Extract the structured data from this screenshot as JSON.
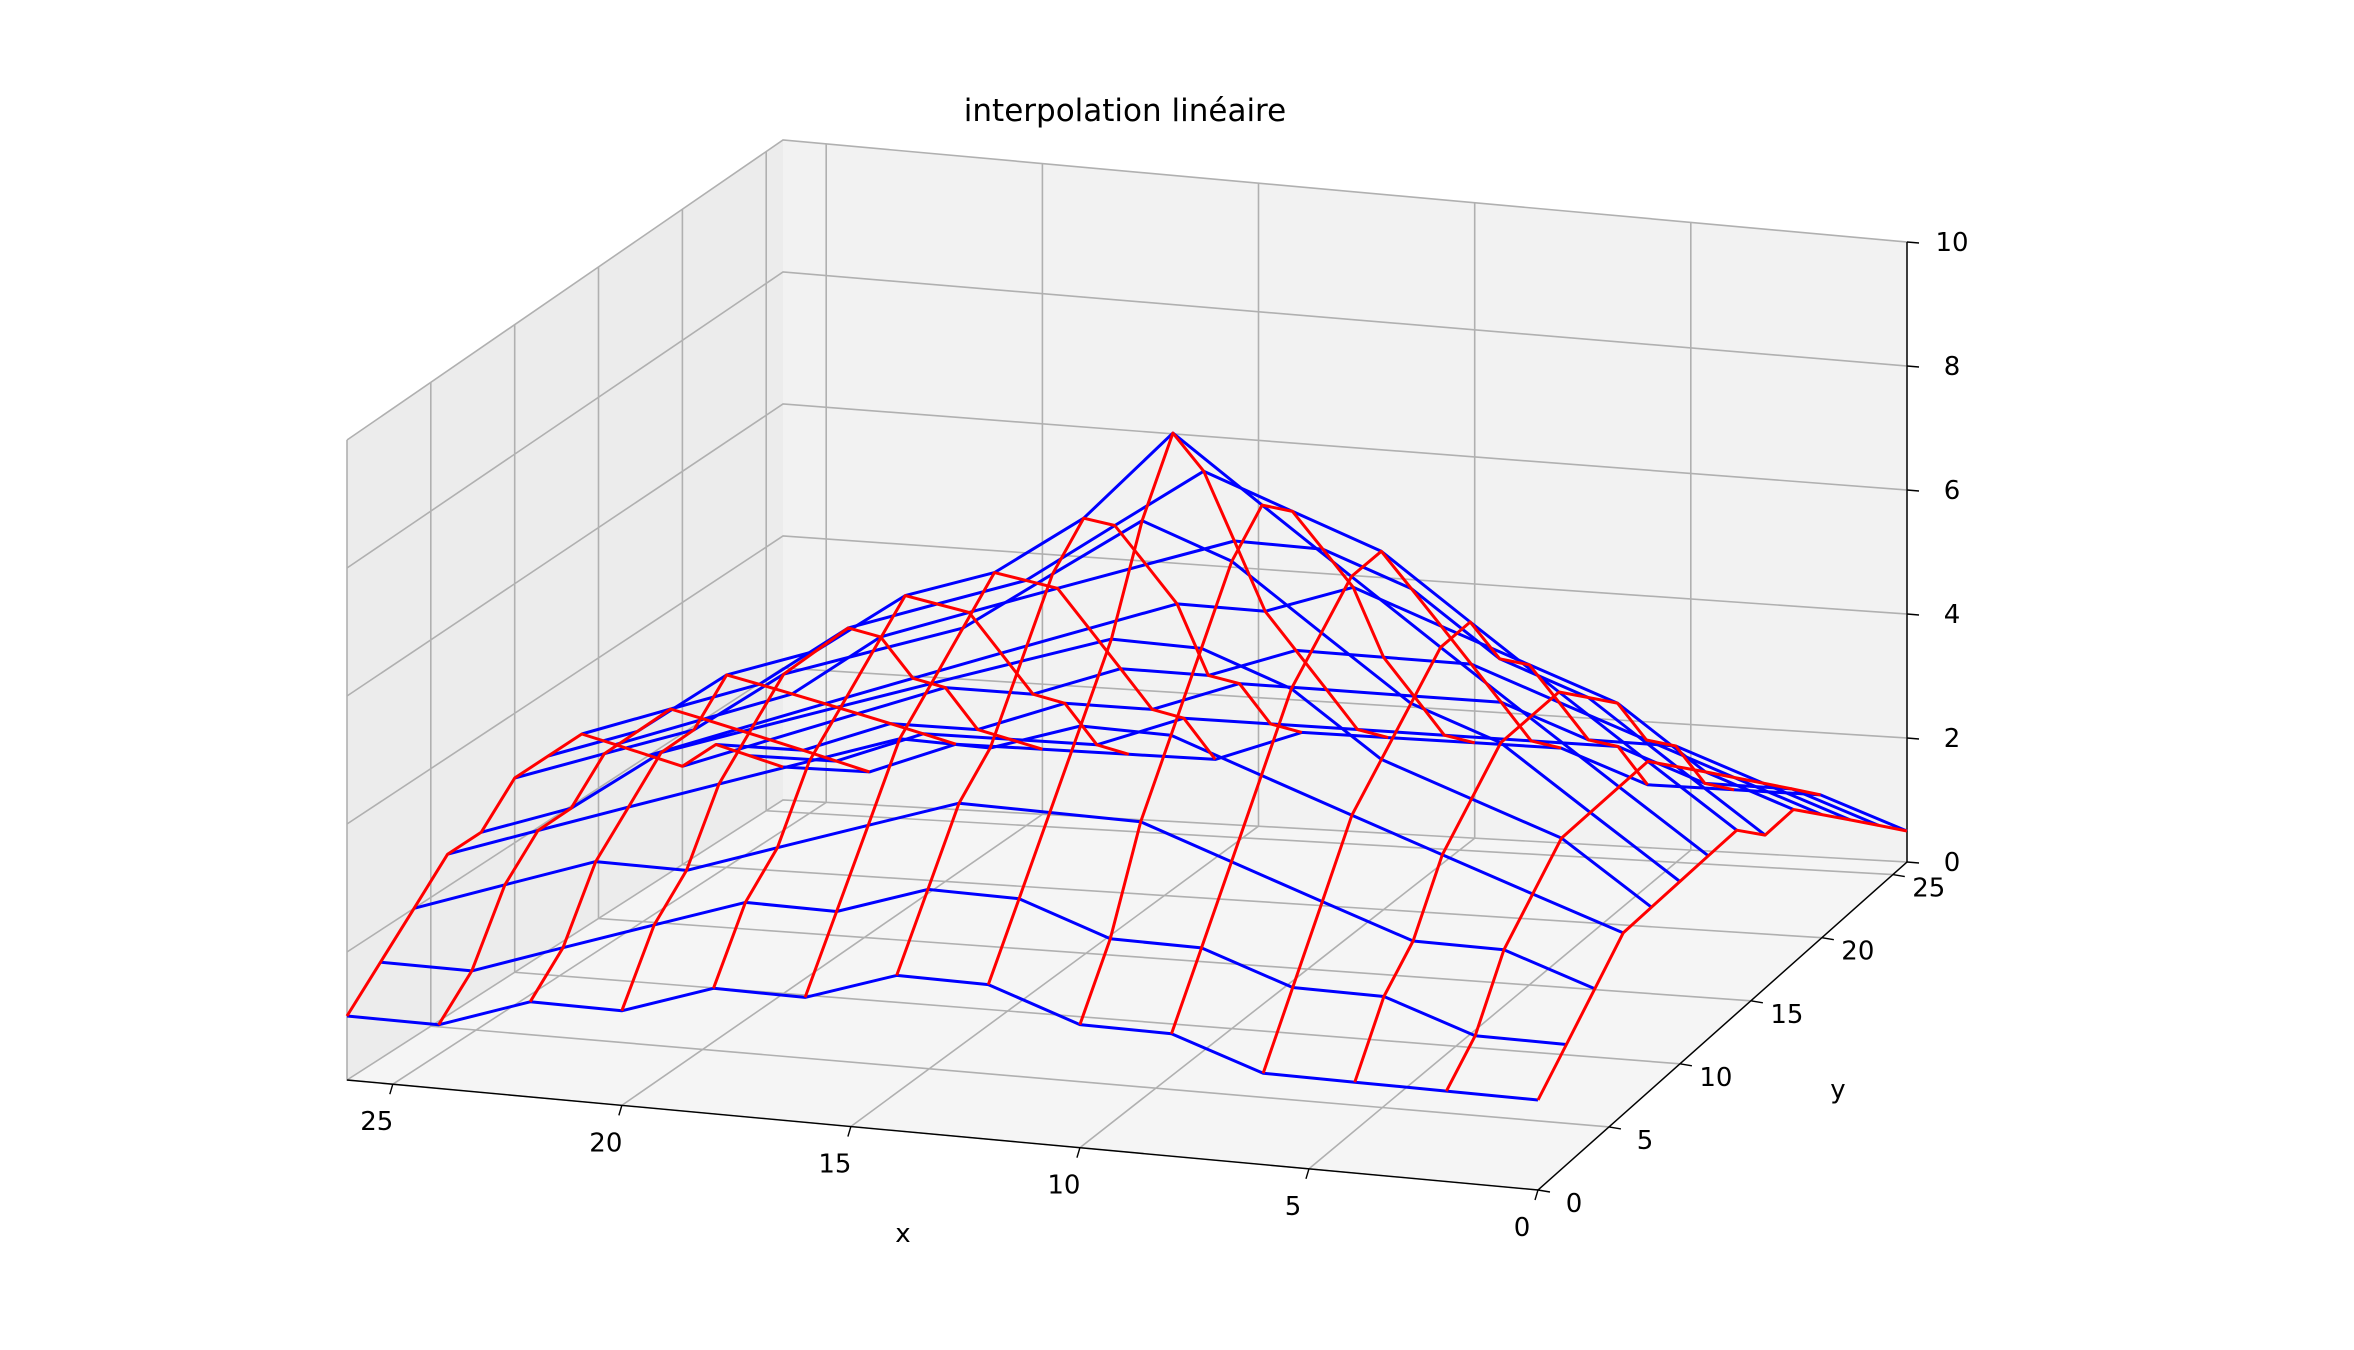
{
  "chart_data": {
    "type": "surface-wireframe",
    "title": "interpolation linéaire",
    "xlabel": "x",
    "ylabel": "y",
    "zlabel": "",
    "x_ticks": [
      "25",
      "20",
      "15",
      "10",
      "5",
      "0"
    ],
    "y_ticks": [
      "0",
      "5",
      "10",
      "15",
      "20",
      "25"
    ],
    "z_ticks": [
      "0",
      "2",
      "4",
      "6",
      "8",
      "10"
    ],
    "xlim": [
      0,
      26
    ],
    "ylim": [
      0,
      26
    ],
    "zlim": [
      0,
      10
    ],
    "grid": true,
    "step": 2,
    "colors": {
      "x_lines": "#0000ff",
      "y_lines": "#ff0000",
      "pane_back": "#f2f2f2",
      "pane_side": "#ececec",
      "pane_floor": "#f5f5f5",
      "grid": "#b0b0b0"
    },
    "series": [
      {
        "kind": "surface",
        "x": [
          0,
          2,
          4,
          6,
          8,
          10,
          12,
          14,
          16,
          18,
          20,
          22,
          24,
          26
        ],
        "y": [
          0,
          2,
          4,
          6,
          8,
          10,
          12,
          14,
          16,
          18,
          20,
          22,
          24,
          26
        ],
        "z": [
          [
            1.5,
            1.5,
            1.5,
            1.5,
            2.0,
            2.0,
            2.5,
            2.5,
            2.0,
            2.0,
            1.5,
            1.5,
            1.0,
            1.0
          ],
          [
            2.0,
            2.0,
            2.5,
            2.5,
            3.0,
            3.0,
            3.5,
            3.5,
            3.0,
            3.0,
            2.5,
            2.0,
            1.5,
            1.5
          ],
          [
            2.5,
            3.0,
            3.0,
            3.5,
            4.0,
            4.5,
            4.5,
            4.5,
            4.0,
            3.5,
            3.0,
            3.0,
            2.5,
            2.0
          ],
          [
            3.0,
            3.5,
            4.0,
            4.5,
            5.0,
            5.5,
            5.5,
            5.0,
            5.0,
            4.5,
            4.0,
            3.5,
            3.0,
            2.5
          ],
          [
            3.0,
            4.0,
            4.5,
            5.0,
            6.0,
            6.5,
            6.5,
            6.0,
            5.5,
            5.0,
            4.5,
            4.0,
            3.0,
            2.5
          ],
          [
            3.0,
            4.0,
            5.0,
            5.5,
            6.5,
            7.5,
            8.0,
            7.0,
            6.0,
            5.5,
            5.0,
            4.0,
            3.5,
            3.0
          ],
          [
            3.0,
            4.0,
            5.0,
            6.0,
            7.0,
            8.0,
            9.0,
            7.5,
            6.5,
            6.0,
            5.0,
            4.5,
            3.5,
            3.0
          ],
          [
            3.0,
            4.0,
            5.0,
            6.0,
            7.0,
            7.5,
            8.0,
            7.0,
            6.0,
            5.5,
            5.0,
            4.0,
            3.5,
            3.0
          ],
          [
            2.5,
            3.5,
            4.5,
            5.0,
            6.0,
            6.5,
            6.5,
            6.0,
            5.5,
            5.0,
            4.5,
            3.5,
            3.0,
            2.5
          ],
          [
            2.5,
            3.0,
            4.0,
            4.5,
            5.0,
            5.5,
            5.0,
            5.0,
            4.5,
            4.0,
            3.5,
            3.0,
            2.5,
            2.0
          ],
          [
            2.0,
            2.5,
            3.0,
            3.5,
            4.0,
            4.0,
            4.0,
            3.5,
            3.5,
            3.0,
            3.0,
            2.5,
            2.0,
            1.5
          ],
          [
            1.5,
            2.0,
            2.5,
            2.5,
            3.0,
            3.0,
            3.0,
            3.0,
            2.5,
            2.5,
            2.0,
            2.0,
            1.5,
            1.5
          ],
          [
            1.0,
            1.5,
            1.5,
            2.0,
            2.0,
            2.0,
            2.0,
            2.0,
            2.0,
            1.5,
            1.5,
            1.5,
            1.0,
            1.0
          ],
          [
            0.5,
            1.0,
            1.0,
            1.0,
            1.5,
            1.5,
            1.5,
            1.5,
            1.0,
            1.0,
            1.0,
            1.0,
            0.5,
            0.5
          ]
        ]
      }
    ]
  }
}
